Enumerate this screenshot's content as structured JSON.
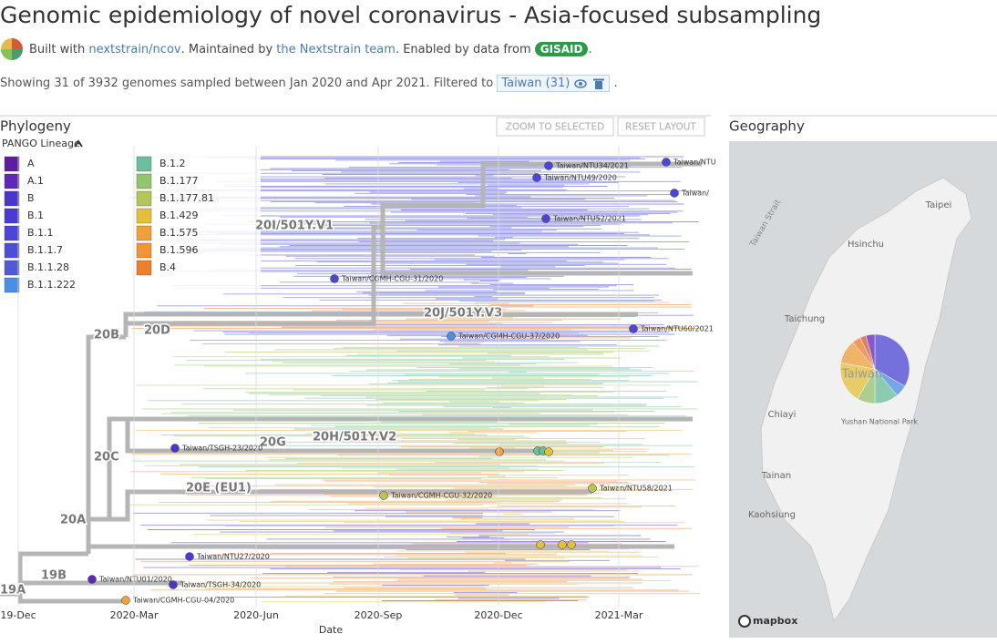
{
  "header": {
    "title": "Genomic epidemiology of novel coronavirus - Asia-focused subsampling",
    "built_with": "Built with",
    "ncov_link": "nextstrain/ncov",
    "maintained_by": ". Maintained by",
    "team_link": "the Nextstrain team",
    "enabled_by": ". Enabled by data from",
    "gisaid": "GISAID",
    "end": "."
  },
  "filter_line": {
    "text": "Showing 31 of 3932 genomes sampled between Jan 2020 and Apr 2021. Filtered to",
    "chip": "Taiwan (31)",
    "end": "."
  },
  "phylogeny": {
    "title": "Phylogeny",
    "buttons": [
      "ZOOM TO SELECTED",
      "RESET LAYOUT"
    ],
    "legend_title": "PANGO Lineage",
    "legend": [
      {
        "name": "A",
        "color": "#5e1d9d"
      },
      {
        "name": "A.1",
        "color": "#6127b8"
      },
      {
        "name": "B",
        "color": "#4a36c9"
      },
      {
        "name": "B.1",
        "color": "#4b3ad3"
      },
      {
        "name": "B.1.1",
        "color": "#4c45d8"
      },
      {
        "name": "B.1.1.7",
        "color": "#4d4ed6"
      },
      {
        "name": "B.1.1.28",
        "color": "#4e5ad6"
      },
      {
        "name": "B.1.1.222",
        "color": "#4b8ee6"
      },
      {
        "name": "B.1.2",
        "color": "#6bbf9e"
      },
      {
        "name": "B.1.177",
        "color": "#93c46e"
      },
      {
        "name": "B.1.177.81",
        "color": "#b4c65a"
      },
      {
        "name": "B.1.429",
        "color": "#e4c03a"
      },
      {
        "name": "B.1.575",
        "color": "#f09f3a"
      },
      {
        "name": "B.1.596",
        "color": "#f29437"
      },
      {
        "name": "B.4",
        "color": "#ef7f30"
      }
    ],
    "clade_labels": [
      "20I/501Y.V1",
      "20J/501Y.V3",
      "20B",
      "20D",
      "20C",
      "20G",
      "20H/501Y.V2",
      "20E (EU1)",
      "20A",
      "19B",
      "19A"
    ],
    "tips": [
      {
        "label": "Taiwan/NTU34/2021",
        "color": "#4d45d6"
      },
      {
        "label": "Taiwan/NTU49/2020",
        "color": "#4d45d6"
      },
      {
        "label": "Taiwan/NTU",
        "color": "#4d45d6"
      },
      {
        "label": "Taiwan/",
        "color": "#4d45d6"
      },
      {
        "label": "Taiwan/NTU52/2021",
        "color": "#4d45d6"
      },
      {
        "label": "Taiwan/CGMH-CGU-31/2020",
        "color": "#4d45d6"
      },
      {
        "label": "Taiwan/NTU60/2021",
        "color": "#4d45d6"
      },
      {
        "label": "Taiwan/CGMH-CGU-37/2020",
        "color": "#4b8ee6"
      },
      {
        "label": "Taiwan/TSGH-23/2020",
        "color": "#4a36c9"
      },
      {
        "label": "Taiwan/CGMH-CGU-32/2020",
        "color": "#b4c65a"
      },
      {
        "label": "Taiwan/NTU58/2021",
        "color": "#b4c65a"
      },
      {
        "label": "Taiwan/NTU27/2020",
        "color": "#4b3ad3"
      },
      {
        "label": "Taiwan/NTU01/2020",
        "color": "#6127b8"
      },
      {
        "label": "Taiwan/TSGH-34/2020",
        "color": "#4a36c9"
      },
      {
        "label": "Taiwan/CGMH-CGU-04/2020",
        "color": "#f09f3a"
      }
    ],
    "x_axis": {
      "ticks": [
        "19-Dec",
        "2020-Mar",
        "2020-Jun",
        "2020-Sep",
        "2020-Dec",
        "2021-Mar"
      ],
      "label": "Date"
    }
  },
  "geography": {
    "title": "Geography",
    "places": [
      "Taipei",
      "Hsinchu",
      "Taichung",
      "Chiayi",
      "Tainan",
      "Kaohsiung",
      "Yushan National Park",
      "Taiwan Strait"
    ],
    "pie_label": "Taiwan",
    "attribution": "mapbox"
  }
}
